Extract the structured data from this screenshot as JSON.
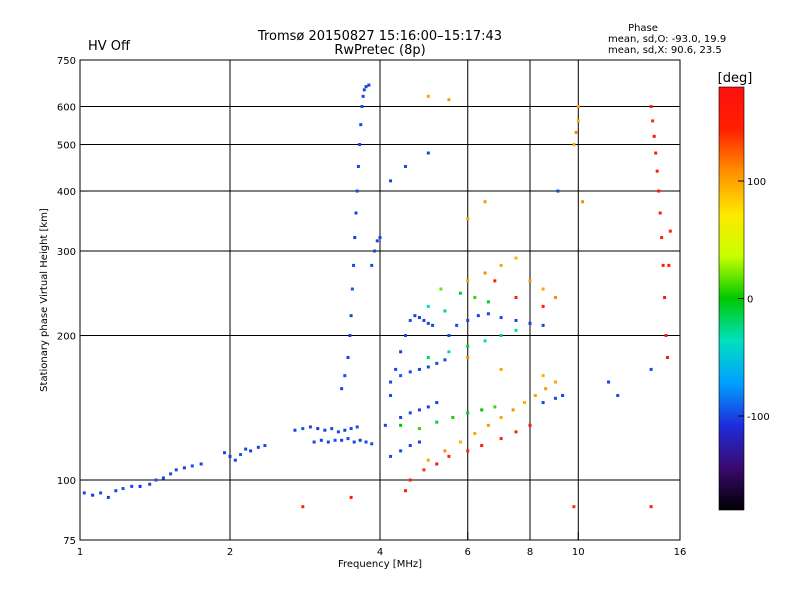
{
  "title": {
    "line1": "Tromsø 20150827 15:16:00–15:17:43",
    "line2": "RwPretec (8p)"
  },
  "status": {
    "label": "HV Off",
    "color": "#d40000"
  },
  "phase_stats": {
    "heading": "Phase",
    "line_o": "mean, sd,O: -93.0, 19.9",
    "line_x": "mean, sd,X: 90.6, 23.5"
  },
  "colorbar": {
    "unit": "[deg]",
    "ticks": [
      {
        "value": 100,
        "label": "100"
      },
      {
        "value": 0,
        "label": "0"
      },
      {
        "value": -100,
        "label": "-100"
      }
    ]
  },
  "chart_data": {
    "type": "scatter",
    "xlabel": "Frequency [MHz]",
    "ylabel": "Stationary phase Virtual Height [km]",
    "xscale": "log",
    "yscale": "log",
    "xlim": [
      1,
      16
    ],
    "ylim": [
      75,
      750
    ],
    "grid": true,
    "x_ticks": [
      {
        "value": 1,
        "label": "1"
      },
      {
        "value": 2,
        "label": "2"
      },
      {
        "value": 4,
        "label": "4"
      },
      {
        "value": 6,
        "label": "6"
      },
      {
        "value": 8,
        "label": "8"
      },
      {
        "value": 10,
        "label": "10"
      },
      {
        "value": 16,
        "label": "16"
      }
    ],
    "y_ticks": [
      {
        "value": 75,
        "label": "75"
      },
      {
        "value": 100,
        "label": "100"
      },
      {
        "value": 200,
        "label": "200"
      },
      {
        "value": 300,
        "label": "300"
      },
      {
        "value": 400,
        "label": "400"
      },
      {
        "value": 500,
        "label": "500"
      },
      {
        "value": 600,
        "label": "600"
      },
      {
        "value": 750,
        "label": "750"
      }
    ],
    "grid_x": [
      2,
      4,
      6,
      8,
      10
    ],
    "grid_y": [
      100,
      200,
      300,
      400,
      500,
      600
    ],
    "color_scale": {
      "min": -180,
      "max": 180,
      "stops": [
        "#000000",
        "#3a0a6e",
        "#1e2cdc",
        "#00a0ff",
        "#00e0c0",
        "#00c800",
        "#c8ff00",
        "#ffe800",
        "#ff9000",
        "#ff2000",
        "#ff1010"
      ]
    },
    "series": [
      {
        "points": [
          [
            1.02,
            94,
            -100
          ],
          [
            1.06,
            93,
            -105
          ],
          [
            1.1,
            94,
            -98
          ],
          [
            1.14,
            92,
            -102
          ],
          [
            1.18,
            95,
            -100
          ],
          [
            1.22,
            96,
            -95
          ],
          [
            1.27,
            97,
            -100
          ],
          [
            1.32,
            97,
            -110
          ],
          [
            1.38,
            98,
            -100
          ],
          [
            1.42,
            100,
            -95
          ],
          [
            1.47,
            101,
            -100
          ],
          [
            1.52,
            103,
            -98
          ],
          [
            1.56,
            105,
            -100
          ],
          [
            1.62,
            106,
            -102
          ],
          [
            1.68,
            107,
            -97
          ],
          [
            1.75,
            108,
            -100
          ],
          [
            1.95,
            114,
            -100
          ],
          [
            2.0,
            112,
            -105
          ],
          [
            2.05,
            110,
            -100
          ],
          [
            2.1,
            113,
            -95
          ],
          [
            2.15,
            116,
            -100
          ],
          [
            2.2,
            115,
            -102
          ],
          [
            2.28,
            117,
            -100
          ],
          [
            2.35,
            118,
            -98
          ],
          [
            2.7,
            127,
            -100
          ],
          [
            2.8,
            128,
            -95
          ],
          [
            2.9,
            129,
            -100
          ],
          [
            3.0,
            128,
            -105
          ],
          [
            3.1,
            127,
            -100
          ],
          [
            3.2,
            128,
            -98
          ],
          [
            3.3,
            126,
            -100
          ],
          [
            3.4,
            127,
            -102
          ],
          [
            3.5,
            128,
            -100
          ],
          [
            3.6,
            129,
            -97
          ],
          [
            2.95,
            120,
            -100
          ],
          [
            3.05,
            121,
            -102
          ],
          [
            3.15,
            120,
            -100
          ],
          [
            3.25,
            121,
            -95
          ],
          [
            3.35,
            121,
            -100
          ],
          [
            3.45,
            122,
            -98
          ],
          [
            3.55,
            120,
            -100
          ],
          [
            3.65,
            121,
            -105
          ],
          [
            3.75,
            120,
            -100
          ],
          [
            3.85,
            119,
            -98
          ],
          [
            3.35,
            155,
            -100
          ],
          [
            3.4,
            165,
            -98
          ],
          [
            3.45,
            180,
            -100
          ],
          [
            3.48,
            200,
            -102
          ],
          [
            3.5,
            220,
            -100
          ],
          [
            3.52,
            250,
            -95
          ],
          [
            3.54,
            280,
            -100
          ],
          [
            3.56,
            320,
            -105
          ],
          [
            3.58,
            360,
            -100
          ],
          [
            3.6,
            400,
            -98
          ],
          [
            3.62,
            450,
            -100
          ],
          [
            3.64,
            500,
            -102
          ],
          [
            3.66,
            550,
            -100
          ],
          [
            3.68,
            600,
            -97
          ],
          [
            3.7,
            630,
            -100
          ],
          [
            3.72,
            650,
            -98
          ],
          [
            3.75,
            660,
            -100
          ],
          [
            3.8,
            665,
            -102
          ],
          [
            3.85,
            280,
            -100
          ],
          [
            3.9,
            300,
            -98
          ],
          [
            3.95,
            315,
            -100
          ],
          [
            4.0,
            320,
            -102
          ],
          [
            4.1,
            130,
            -100
          ],
          [
            4.2,
            150,
            -98
          ],
          [
            4.3,
            170,
            -100
          ],
          [
            4.4,
            185,
            -102
          ],
          [
            4.5,
            200,
            -100
          ],
          [
            4.6,
            215,
            -95
          ],
          [
            4.7,
            220,
            -100
          ],
          [
            4.8,
            218,
            -105
          ],
          [
            4.9,
            215,
            -100
          ],
          [
            5.0,
            212,
            -98
          ],
          [
            5.1,
            210,
            -100
          ],
          [
            4.2,
            160,
            -100
          ],
          [
            4.4,
            165,
            -95
          ],
          [
            4.6,
            168,
            -100
          ],
          [
            4.8,
            170,
            -102
          ],
          [
            5.0,
            172,
            -100
          ],
          [
            5.2,
            175,
            -98
          ],
          [
            5.4,
            178,
            -100
          ],
          [
            4.2,
            112,
            -100
          ],
          [
            4.4,
            115,
            -98
          ],
          [
            4.6,
            118,
            -100
          ],
          [
            4.8,
            120,
            -102
          ],
          [
            4.4,
            135,
            -100
          ],
          [
            4.6,
            138,
            -98
          ],
          [
            4.8,
            140,
            -100
          ],
          [
            5.0,
            142,
            -102
          ],
          [
            5.2,
            145,
            -100
          ],
          [
            5.5,
            200,
            -100
          ],
          [
            5.7,
            210,
            -98
          ],
          [
            6.0,
            215,
            -100
          ],
          [
            6.3,
            220,
            -102
          ],
          [
            6.6,
            222,
            -100
          ],
          [
            7.0,
            218,
            -98
          ],
          [
            7.5,
            215,
            -100
          ],
          [
            8.0,
            212,
            -102
          ],
          [
            8.5,
            210,
            -100
          ],
          [
            4.2,
            420,
            -100
          ],
          [
            4.5,
            450,
            -98
          ],
          [
            5.0,
            480,
            -100
          ],
          [
            8.5,
            145,
            -100
          ],
          [
            9.0,
            148,
            -98
          ],
          [
            9.3,
            150,
            -100
          ],
          [
            9.1,
            400,
            -100
          ],
          [
            11.5,
            160,
            -100
          ],
          [
            12.0,
            150,
            -98
          ],
          [
            14.0,
            170,
            -100
          ]
        ]
      },
      {
        "points": [
          [
            4.4,
            130,
            0
          ],
          [
            4.8,
            128,
            10
          ],
          [
            5.2,
            132,
            -10
          ],
          [
            5.6,
            135,
            5
          ],
          [
            6.0,
            138,
            -5
          ],
          [
            6.4,
            140,
            0
          ],
          [
            6.8,
            142,
            10
          ],
          [
            5.0,
            180,
            -20
          ],
          [
            5.5,
            185,
            -30
          ],
          [
            6.0,
            190,
            -10
          ],
          [
            6.5,
            195,
            -40
          ],
          [
            7.0,
            200,
            -20
          ],
          [
            7.5,
            205,
            -30
          ],
          [
            5.3,
            250,
            20
          ],
          [
            5.8,
            245,
            -10
          ],
          [
            6.2,
            240,
            10
          ],
          [
            6.6,
            235,
            -5
          ],
          [
            5.0,
            230,
            -40
          ],
          [
            5.4,
            225,
            -20
          ]
        ]
      },
      {
        "points": [
          [
            5.0,
            110,
            100
          ],
          [
            5.4,
            115,
            110
          ],
          [
            5.8,
            120,
            95
          ],
          [
            6.2,
            125,
            100
          ],
          [
            6.6,
            130,
            105
          ],
          [
            7.0,
            135,
            100
          ],
          [
            7.4,
            140,
            110
          ],
          [
            7.8,
            145,
            95
          ],
          [
            8.2,
            150,
            100
          ],
          [
            8.6,
            155,
            105
          ],
          [
            6.0,
            260,
            100
          ],
          [
            6.5,
            270,
            110
          ],
          [
            7.0,
            280,
            100
          ],
          [
            7.5,
            290,
            95
          ],
          [
            8.0,
            260,
            105
          ],
          [
            8.5,
            250,
            100
          ],
          [
            9.0,
            240,
            110
          ],
          [
            6.0,
            350,
            100
          ],
          [
            6.5,
            380,
            105
          ],
          [
            9.8,
            500,
            100
          ],
          [
            9.9,
            530,
            110
          ],
          [
            10.0,
            560,
            95
          ],
          [
            10.0,
            600,
            100
          ],
          [
            10.2,
            380,
            110
          ],
          [
            5.0,
            630,
            100
          ],
          [
            5.5,
            620,
            105
          ],
          [
            6.0,
            180,
            110
          ],
          [
            7.0,
            170,
            100
          ],
          [
            8.5,
            165,
            95
          ],
          [
            9.0,
            160,
            100
          ]
        ]
      },
      {
        "points": [
          [
            4.6,
            100,
            150
          ],
          [
            4.9,
            105,
            140
          ],
          [
            5.2,
            108,
            160
          ],
          [
            5.5,
            112,
            145
          ],
          [
            6.0,
            115,
            150
          ],
          [
            6.4,
            118,
            155
          ],
          [
            7.0,
            122,
            150
          ],
          [
            7.5,
            126,
            145
          ],
          [
            8.0,
            130,
            160
          ],
          [
            2.8,
            88,
            140
          ],
          [
            3.5,
            92,
            150
          ],
          [
            4.5,
            95,
            150
          ],
          [
            9.8,
            88,
            140
          ],
          [
            14.0,
            88,
            150
          ],
          [
            15.2,
            280,
            150
          ],
          [
            15.3,
            330,
            145
          ],
          [
            14.0,
            600,
            150
          ],
          [
            14.1,
            560,
            140
          ],
          [
            14.2,
            520,
            160
          ],
          [
            14.3,
            480,
            150
          ],
          [
            14.4,
            440,
            145
          ],
          [
            14.5,
            400,
            150
          ],
          [
            14.6,
            360,
            155
          ],
          [
            14.7,
            320,
            150
          ],
          [
            14.8,
            280,
            145
          ],
          [
            14.9,
            240,
            150
          ],
          [
            15.0,
            200,
            160
          ],
          [
            15.1,
            180,
            150
          ],
          [
            8.5,
            230,
            150
          ],
          [
            7.5,
            240,
            155
          ],
          [
            6.8,
            260,
            150
          ]
        ]
      }
    ]
  }
}
